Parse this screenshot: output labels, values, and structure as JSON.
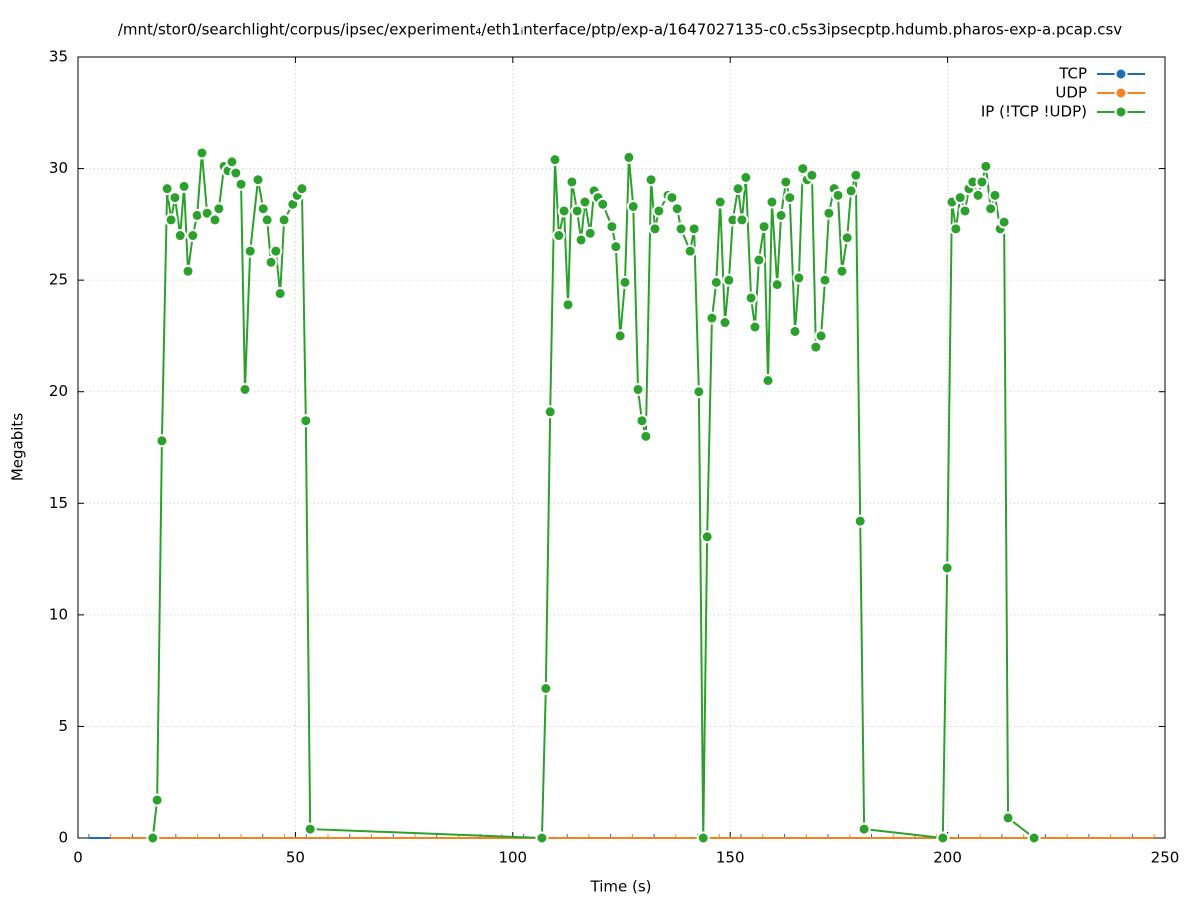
{
  "chart_data": {
    "type": "line",
    "title": "/mnt/stor0/searchlight/corpus/ipsec/experiment₄/eth1ᵢnterface/ptp/exp-a/1647027135-c0.c5s3ipsecptp.hdumb.pharos-exp-a.pcap.csv",
    "x_label": "Time (s)",
    "y_label": "Megabits",
    "xlim": [
      0,
      250
    ],
    "xticks": [
      0,
      50,
      100,
      150,
      200,
      250
    ],
    "ylim": [
      0,
      35
    ],
    "yticks": [
      0,
      5,
      10,
      15,
      20,
      25,
      30,
      35
    ],
    "grid": true,
    "legend": "top-right",
    "series": [
      {
        "name": "TCP",
        "color": "#1f6db5",
        "x": [
          2.5,
          12.5,
          22.5,
          32.5,
          42.5,
          52.5,
          62.5,
          72.5,
          82.5,
          92.5,
          102.5,
          112.5,
          122.5,
          132.5,
          142.5,
          152.5,
          162.5,
          172.5,
          182.5,
          192.5,
          202.5,
          212.5,
          222.5,
          232.5,
          242.5
        ],
        "values": [
          0,
          0,
          0,
          0,
          0,
          0,
          0,
          0,
          0,
          0,
          0,
          0,
          0,
          0,
          0,
          0,
          0,
          0,
          0,
          0,
          0,
          0,
          0,
          0,
          0
        ]
      },
      {
        "name": "UDP",
        "color": "#f5821f",
        "x": [
          7.5,
          17.5,
          27.5,
          37.5,
          47.5,
          57.5,
          67.5,
          77.5,
          87.5,
          97.5,
          107.5,
          117.5,
          127.5,
          137.5,
          147.5,
          157.5,
          167.5,
          177.5,
          187.5,
          197.5,
          207.5,
          217.5,
          227.5,
          237.5,
          247.5
        ],
        "values": [
          0,
          0,
          0,
          0,
          0,
          0,
          0,
          0,
          0,
          0,
          0,
          0,
          0,
          0,
          0,
          0,
          0,
          0,
          0,
          0,
          0,
          0,
          0,
          0,
          0
        ]
      },
      {
        "name": "IP (!TCP  !UDP)",
        "color": "#2ca02c",
        "x": [
          17.2,
          18.2,
          19.3,
          20.5,
          21.4,
          22.3,
          23.5,
          24.4,
          25.3,
          26.4,
          27.4,
          28.5,
          29.7,
          31.5,
          32.4,
          33.6,
          34.5,
          35.4,
          36.3,
          37.5,
          38.4,
          39.6,
          41.4,
          42.6,
          43.5,
          44.4,
          45.5,
          46.5,
          47.4,
          49.4,
          50.4,
          51.5,
          52.4,
          53.4,
          106.7,
          107.6,
          108.6,
          109.7,
          110.6,
          111.8,
          112.7,
          113.6,
          114.8,
          115.7,
          116.6,
          117.8,
          118.7,
          119.6,
          120.7,
          122.8,
          123.7,
          124.7,
          125.8,
          126.7,
          127.7,
          128.8,
          129.7,
          130.6,
          131.8,
          132.7,
          133.6,
          135.7,
          136.6,
          137.8,
          138.7,
          140.8,
          141.7,
          142.8,
          143.8,
          144.7,
          145.8,
          146.8,
          147.7,
          148.8,
          149.7,
          150.6,
          151.8,
          152.7,
          153.6,
          154.8,
          155.7,
          156.6,
          157.8,
          158.7,
          159.6,
          160.8,
          161.7,
          162.8,
          163.7,
          164.9,
          165.8,
          166.7,
          167.7,
          168.8,
          169.7,
          170.9,
          171.8,
          172.7,
          173.9,
          174.8,
          175.7,
          176.9,
          177.8,
          178.9,
          179.9,
          180.8,
          198.9,
          199.9,
          201.0,
          201.9,
          202.9,
          204.0,
          204.9,
          205.8,
          207.0,
          207.9,
          208.8,
          209.9,
          210.9,
          212.1,
          213.0,
          213.9,
          219.9
        ],
        "values": [
          0,
          1.7,
          17.8,
          29.1,
          27.7,
          28.7,
          27.0,
          29.2,
          25.4,
          27.0,
          27.9,
          30.7,
          28.0,
          27.7,
          28.2,
          30.1,
          29.9,
          30.3,
          29.8,
          29.3,
          20.1,
          26.3,
          29.5,
          28.2,
          27.7,
          25.8,
          26.3,
          24.4,
          27.7,
          28.4,
          28.8,
          29.1,
          18.7,
          0.4,
          0,
          6.7,
          19.1,
          30.4,
          27.0,
          28.1,
          23.9,
          29.4,
          28.1,
          26.8,
          28.5,
          27.1,
          29.0,
          28.7,
          28.4,
          27.4,
          26.5,
          22.5,
          24.9,
          30.5,
          28.3,
          20.1,
          18.7,
          18.0,
          29.5,
          27.3,
          28.1,
          28.8,
          28.7,
          28.2,
          27.3,
          26.3,
          27.3,
          20.0,
          0,
          13.5,
          23.3,
          24.9,
          28.5,
          23.1,
          25.0,
          27.7,
          29.1,
          27.7,
          29.6,
          24.2,
          22.9,
          25.9,
          27.4,
          20.5,
          28.5,
          24.8,
          27.9,
          29.4,
          28.7,
          22.7,
          25.1,
          30.0,
          29.5,
          29.7,
          22.0,
          22.5,
          25.0,
          28.0,
          29.1,
          28.8,
          25.4,
          26.9,
          29.0,
          29.7,
          14.2,
          0.4,
          0,
          12.1,
          28.5,
          27.3,
          28.7,
          28.1,
          29.1,
          29.4,
          28.8,
          29.4,
          30.1,
          28.2,
          28.8,
          27.3,
          27.6,
          0.9,
          0
        ]
      }
    ]
  }
}
